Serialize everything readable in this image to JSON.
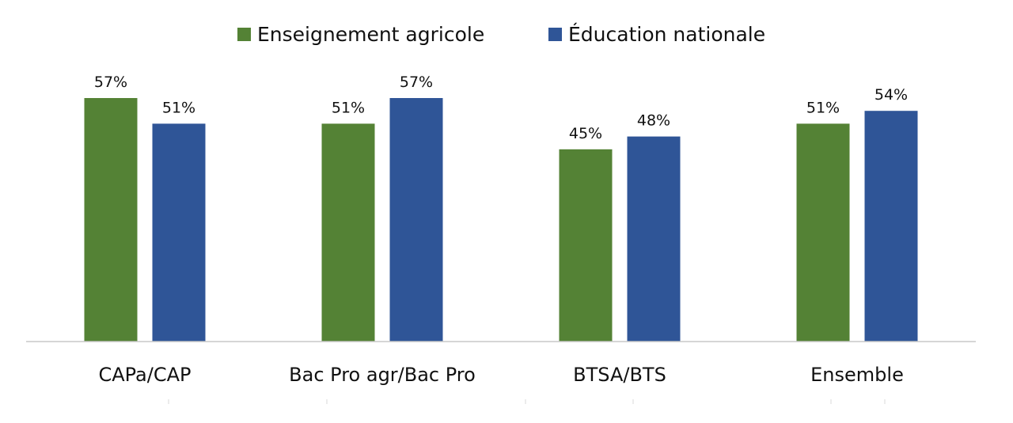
{
  "chart_data": {
    "type": "bar",
    "title": "",
    "xlabel": "",
    "ylabel": "",
    "categories": [
      "CAPa/CAP",
      "Bac Pro agr/Bac Pro",
      "BTSA/BTS",
      "Ensemble"
    ],
    "series": [
      {
        "name": "Enseignement agricole",
        "color": "#548235",
        "values": [
          57,
          51,
          45,
          51
        ],
        "labels": [
          "57%",
          "51%",
          "45%",
          "51%"
        ]
      },
      {
        "name": "Éducation nationale",
        "color": "#2F5597",
        "values": [
          51,
          57,
          48,
          54
        ],
        "labels": [
          "51%",
          "57%",
          "48%",
          "54%"
        ]
      }
    ],
    "ylim": [
      0,
      57
    ],
    "y_axis_visible": false,
    "grid": false,
    "legend_position": "top-center",
    "value_labels": true
  }
}
